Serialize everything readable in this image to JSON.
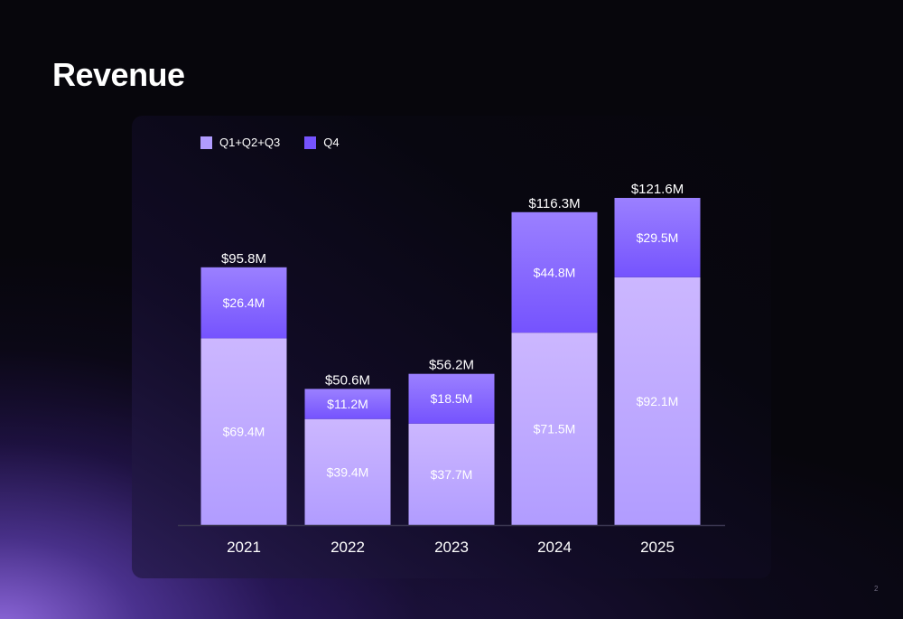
{
  "slide": {
    "title": "Revenue",
    "page_number": "2"
  },
  "colors": {
    "q123_top": "#ccb7ff",
    "q123_bottom": "#b19cff",
    "q4_top": "#9b80ff",
    "q4_bottom": "#7553fe",
    "axis": "#3a3650",
    "text": "#ffffff"
  },
  "chart_data": {
    "type": "bar",
    "stacked": true,
    "title": "Revenue",
    "xlabel": "",
    "ylabel": "",
    "categories": [
      "2021",
      "2022",
      "2023",
      "2024",
      "2025"
    ],
    "series": [
      {
        "name": "Q1+Q2+Q3",
        "values": [
          69.4,
          39.4,
          37.7,
          71.5,
          92.1
        ],
        "labels": [
          "$69.4M",
          "$39.4M",
          "$37.7M",
          "$71.5M",
          "$92.1M"
        ]
      },
      {
        "name": "Q4",
        "values": [
          26.4,
          11.2,
          18.5,
          44.8,
          29.5
        ],
        "labels": [
          "$26.4M",
          "$11.2M",
          "$18.5M",
          "$44.8M",
          "$29.5M"
        ]
      }
    ],
    "totals": [
      95.8,
      50.6,
      56.2,
      116.3,
      121.6
    ],
    "total_labels": [
      "$95.8M",
      "$50.6M",
      "$56.2M",
      "$116.3M",
      "$121.6M"
    ],
    "ylim": [
      0,
      131.5
    ],
    "grid": false,
    "legend": "top-left",
    "units": "USD millions"
  }
}
